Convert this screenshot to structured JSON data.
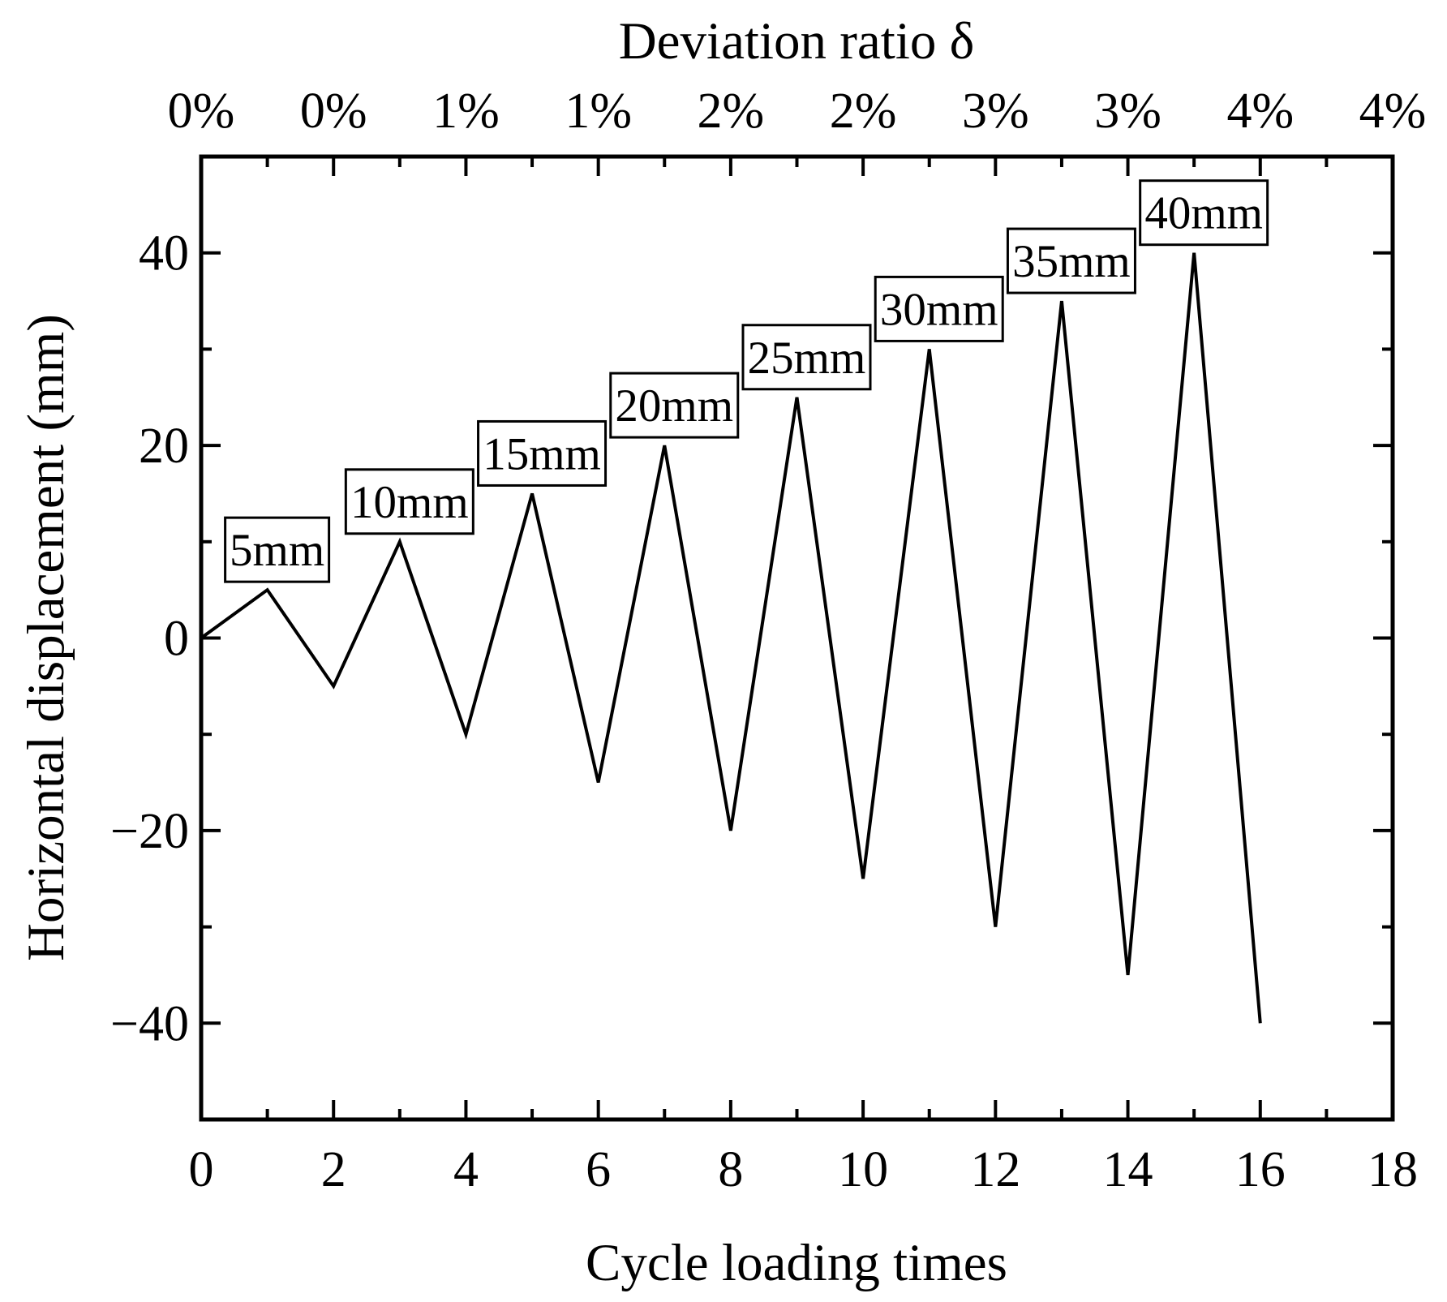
{
  "page": {
    "background": "#ffffff",
    "ink_color": "#000000"
  },
  "chart_data": {
    "type": "line",
    "title_top": "Deviation ratio δ",
    "xlabel_bottom": "Cycle loading times",
    "ylabel_left": "Horizontal displacement (mm)",
    "grid": false,
    "legend": null,
    "line_color": "#000000",
    "x_axis": {
      "min": 0,
      "max": 18,
      "major_tick_values": [
        0,
        2,
        4,
        6,
        8,
        10,
        12,
        14,
        16,
        18
      ],
      "minor_tick_values": [
        1,
        3,
        5,
        7,
        9,
        11,
        13,
        15,
        17
      ],
      "tick_labels": [
        "0",
        "2",
        "4",
        "6",
        "8",
        "10",
        "12",
        "14",
        "16",
        "18"
      ]
    },
    "top_axis": {
      "tick_positions": [
        0,
        2,
        4,
        6,
        8,
        10,
        12,
        14,
        16,
        18
      ],
      "minor_tick_values": [
        1,
        3,
        5,
        7,
        9,
        11,
        13,
        15,
        17
      ],
      "tick_labels": [
        "0%",
        "0%",
        "1%",
        "1%",
        "2%",
        "2%",
        "3%",
        "3%",
        "4%",
        "4%"
      ]
    },
    "y_axis": {
      "min": -50,
      "max": 50,
      "major_tick_values": [
        -40,
        -20,
        0,
        20,
        40
      ],
      "minor_tick_values": [
        -30,
        -10,
        10,
        30
      ],
      "tick_labels": [
        "−40",
        "−20",
        "0",
        "20",
        "40"
      ]
    },
    "series": [
      {
        "name": "cyclic-horizontal-displacement",
        "x": [
          0,
          1,
          2,
          3,
          4,
          5,
          6,
          7,
          8,
          9,
          10,
          11,
          12,
          13,
          14,
          15,
          16
        ],
        "y": [
          0,
          5,
          -5,
          10,
          -10,
          15,
          -15,
          20,
          -20,
          25,
          -25,
          30,
          -30,
          35,
          -35,
          40,
          -40
        ]
      }
    ],
    "point_annotations": [
      {
        "label": "5mm",
        "x": 1,
        "y": 5
      },
      {
        "label": "10mm",
        "x": 3,
        "y": 10
      },
      {
        "label": "15mm",
        "x": 5,
        "y": 15
      },
      {
        "label": "20mm",
        "x": 7,
        "y": 20
      },
      {
        "label": "25mm",
        "x": 9,
        "y": 25
      },
      {
        "label": "30mm",
        "x": 11,
        "y": 30
      },
      {
        "label": "35mm",
        "x": 13,
        "y": 35
      },
      {
        "label": "40mm",
        "x": 15,
        "y": 40
      }
    ]
  }
}
